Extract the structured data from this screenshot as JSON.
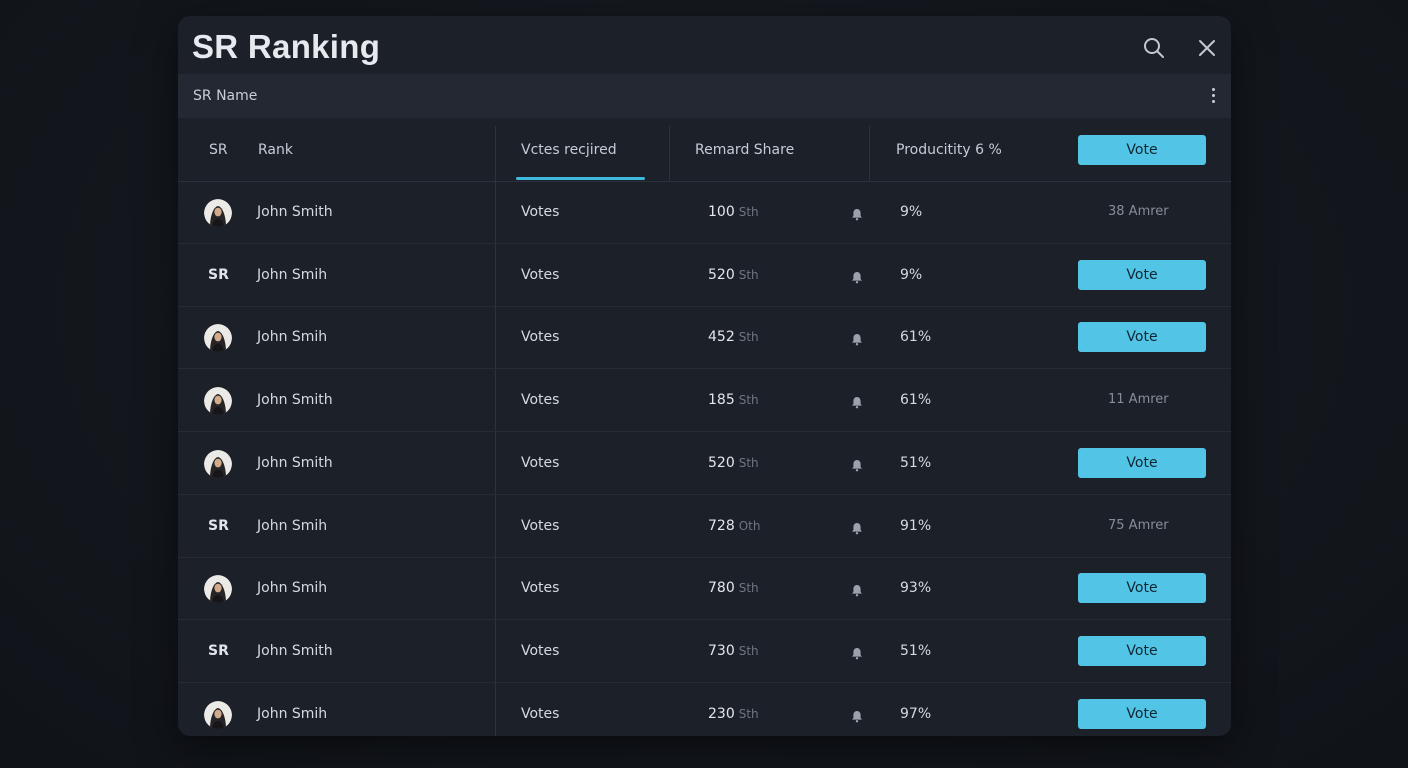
{
  "title": "SR Ranking",
  "subheader": {
    "label": "SR Name"
  },
  "columns": {
    "sr": "SR",
    "rank": "Rank",
    "votes_required": "Vctes recjired",
    "reward_share": "Remard Share",
    "productivity": "Producitity 6 %",
    "vote_button": "Vote"
  },
  "colors": {
    "accent": "#52c4e6",
    "background": "#1c2028",
    "subheader": "#232833"
  },
  "icons": [
    "search-icon",
    "close-icon",
    "more-options-icon",
    "avatar",
    "bell-icon"
  ],
  "rows": [
    {
      "rank": "",
      "avatar": true,
      "name": "John Smith",
      "votes": "Votes",
      "amount": "100",
      "unit": "Sth",
      "percent": "9%",
      "action": "status",
      "status": "38 Amrer"
    },
    {
      "rank": "SR",
      "avatar": false,
      "name": "John Smih",
      "votes": "Votes",
      "amount": "520",
      "unit": "Sth",
      "percent": "9%",
      "action": "vote",
      "button": "Vote"
    },
    {
      "rank": "",
      "avatar": true,
      "name": "John Smih",
      "votes": "Votes",
      "amount": "452",
      "unit": "Sth",
      "percent": "61%",
      "action": "vote",
      "button": "Vote"
    },
    {
      "rank": "",
      "avatar": true,
      "name": "John Smith",
      "votes": "Votes",
      "amount": "185",
      "unit": "Sth",
      "percent": "61%",
      "action": "status",
      "status": "11 Amrer"
    },
    {
      "rank": "",
      "avatar": true,
      "name": "John Smith",
      "votes": "Votes",
      "amount": "520",
      "unit": "Sth",
      "percent": "51%",
      "action": "vote",
      "button": "Vote"
    },
    {
      "rank": "SR",
      "avatar": false,
      "name": "John Smih",
      "votes": "Votes",
      "amount": "728",
      "unit": "Oth",
      "percent": "91%",
      "action": "status",
      "status": "75 Amrer"
    },
    {
      "rank": "",
      "avatar": true,
      "name": "John Smih",
      "votes": "Votes",
      "amount": "780",
      "unit": "Sth",
      "percent": "93%",
      "action": "vote",
      "button": "Vote"
    },
    {
      "rank": "SR",
      "avatar": false,
      "name": "John Smith",
      "votes": "Votes",
      "amount": "730",
      "unit": "Sth",
      "percent": "51%",
      "action": "vote",
      "button": "Vote"
    },
    {
      "rank": "",
      "avatar": true,
      "name": "John Smih",
      "votes": "Votes",
      "amount": "230",
      "unit": "Sth",
      "percent": "97%",
      "action": "vote",
      "button": "Vote"
    }
  ]
}
